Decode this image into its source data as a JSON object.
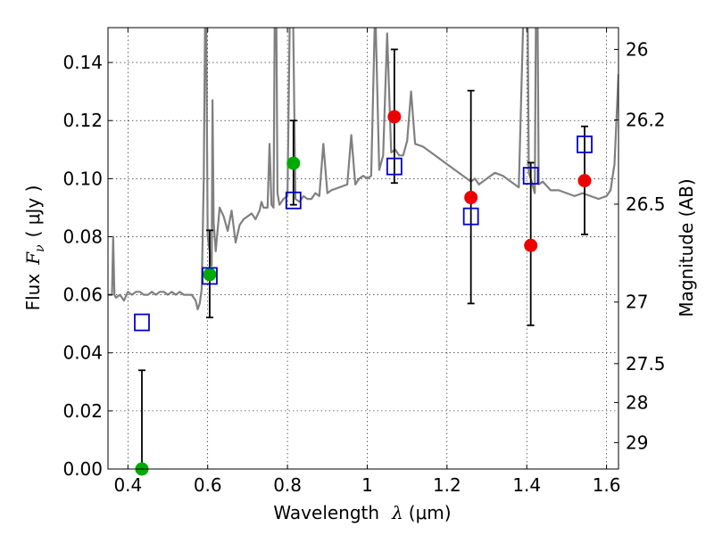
{
  "chart_data": {
    "type": "scatter",
    "xlim": [
      0.35,
      1.63
    ],
    "ylim": [
      0.0,
      0.152
    ],
    "grid": true,
    "x_ticks": [
      0.4,
      0.6,
      0.8,
      1.0,
      1.2,
      1.4,
      1.6
    ],
    "x_tick_labels": [
      "0.4",
      "0.6",
      "0.8",
      "1",
      "1.2",
      "1.4",
      "1.6"
    ],
    "y_ticks": [
      0.0,
      0.02,
      0.04,
      0.06,
      0.08,
      0.1,
      0.12,
      0.14
    ],
    "y_tick_labels": [
      "0.00",
      "0.02",
      "0.04",
      "0.06",
      "0.08",
      "0.10",
      "0.12",
      "0.14"
    ],
    "right_axis": {
      "label": "Magnitude (AB)",
      "ticks": [
        {
          "label": "26",
          "flux": 0.1445
        },
        {
          "label": "26.2",
          "flux": 0.1202
        },
        {
          "label": "26.5",
          "flux": 0.0912
        },
        {
          "label": "27",
          "flux": 0.0575
        },
        {
          "label": "27.5",
          "flux": 0.0363
        },
        {
          "label": "28",
          "flux": 0.0229
        },
        {
          "label": "29",
          "flux": 0.0091
        }
      ]
    },
    "xlabel_text": "Wavelength",
    "xlabel_symbol": "λ",
    "xlabel_unit": "(μm)",
    "ylabel_text": "Flux",
    "ylabel_symbol": "F",
    "ylabel_sub": "ν",
    "ylabel_unit": "( μJy )",
    "colors": {
      "model": "#808080",
      "green": "#00aa00",
      "red": "#ee0000",
      "box": "#0000cc",
      "errorbar": "#000000"
    },
    "series": [
      {
        "kind": "model_spectrum",
        "x": [
          0.35,
          0.36,
          0.363,
          0.366,
          0.37,
          0.38,
          0.39,
          0.4,
          0.41,
          0.42,
          0.43,
          0.44,
          0.45,
          0.46,
          0.47,
          0.48,
          0.49,
          0.5,
          0.51,
          0.52,
          0.53,
          0.54,
          0.55,
          0.56,
          0.57,
          0.575,
          0.58,
          0.585,
          0.59,
          0.595,
          0.6,
          0.61,
          0.612,
          0.615,
          0.62,
          0.63,
          0.64,
          0.65,
          0.66,
          0.67,
          0.68,
          0.69,
          0.7,
          0.71,
          0.72,
          0.73,
          0.735,
          0.74,
          0.75,
          0.755,
          0.76,
          0.765,
          0.77,
          0.775,
          0.78,
          0.79,
          0.8,
          0.81,
          0.82,
          0.83,
          0.84,
          0.85,
          0.86,
          0.87,
          0.88,
          0.89,
          0.9,
          0.91,
          0.93,
          0.95,
          0.96,
          0.97,
          0.98,
          0.99,
          1.0,
          1.01,
          1.02,
          1.03,
          1.04,
          1.05,
          1.06,
          1.07,
          1.08,
          1.09,
          1.1,
          1.11,
          1.12,
          1.14,
          1.16,
          1.18,
          1.2,
          1.22,
          1.24,
          1.26,
          1.27,
          1.28,
          1.3,
          1.32,
          1.34,
          1.36,
          1.38,
          1.4,
          1.405,
          1.41,
          1.42,
          1.425,
          1.43,
          1.44,
          1.46,
          1.48,
          1.5,
          1.52,
          1.54,
          1.56,
          1.58,
          1.6,
          1.61,
          1.62,
          1.63
        ],
        "y": [
          0.06,
          0.06,
          0.08,
          0.06,
          0.059,
          0.06,
          0.058,
          0.061,
          0.06,
          0.061,
          0.061,
          0.06,
          0.06,
          0.061,
          0.06,
          0.061,
          0.061,
          0.06,
          0.061,
          0.06,
          0.061,
          0.06,
          0.06,
          0.06,
          0.058,
          0.055,
          0.057,
          0.062,
          0.1,
          0.18,
          0.08,
          0.07,
          0.127,
          0.085,
          0.075,
          0.09,
          0.087,
          0.082,
          0.089,
          0.078,
          0.084,
          0.086,
          0.087,
          0.088,
          0.086,
          0.089,
          0.092,
          0.09,
          0.09,
          0.112,
          0.091,
          0.09,
          0.2,
          0.095,
          0.091,
          0.093,
          0.094,
          0.2,
          0.093,
          0.092,
          0.094,
          0.093,
          0.093,
          0.095,
          0.094,
          0.112,
          0.095,
          0.096,
          0.097,
          0.098,
          0.115,
          0.098,
          0.1,
          0.101,
          0.1,
          0.101,
          0.16,
          0.103,
          0.108,
          0.15,
          0.109,
          0.11,
          0.108,
          0.108,
          0.113,
          0.13,
          0.112,
          0.111,
          0.109,
          0.107,
          0.105,
          0.103,
          0.101,
          0.099,
          0.1,
          0.098,
          0.1,
          0.102,
          0.101,
          0.099,
          0.097,
          0.2,
          0.102,
          0.1,
          0.095,
          0.2,
          0.098,
          0.099,
          0.096,
          0.096,
          0.095,
          0.094,
          0.095,
          0.094,
          0.093,
          0.094,
          0.096,
          0.105,
          0.136
        ]
      },
      {
        "kind": "green_points",
        "points": [
          {
            "x": 0.435,
            "y": 0.0,
            "err_up": 0.034,
            "err_down": 0.0
          },
          {
            "x": 0.605,
            "y": 0.067,
            "err_up": 0.0152,
            "err_down": 0.0148
          },
          {
            "x": 0.815,
            "y": 0.1053,
            "err_up": 0.0147,
            "err_down": 0.0143
          }
        ]
      },
      {
        "kind": "red_points",
        "points": [
          {
            "x": 1.068,
            "y": 0.1213,
            "err_up": 0.0232,
            "err_down": 0.0228
          },
          {
            "x": 1.26,
            "y": 0.0935,
            "err_up": 0.0368,
            "err_down": 0.0365
          },
          {
            "x": 1.41,
            "y": 0.077,
            "err_up": 0.0285,
            "err_down": 0.0275
          },
          {
            "x": 1.545,
            "y": 0.0993,
            "err_up": 0.0187,
            "err_down": 0.0185
          }
        ]
      },
      {
        "kind": "open_boxes",
        "points": [
          {
            "x": 0.435,
            "y": 0.0505
          },
          {
            "x": 0.605,
            "y": 0.0665
          },
          {
            "x": 0.815,
            "y": 0.0925
          },
          {
            "x": 1.068,
            "y": 0.1042
          },
          {
            "x": 1.26,
            "y": 0.087
          },
          {
            "x": 1.41,
            "y": 0.101
          },
          {
            "x": 1.545,
            "y": 0.1118
          }
        ]
      }
    ]
  }
}
